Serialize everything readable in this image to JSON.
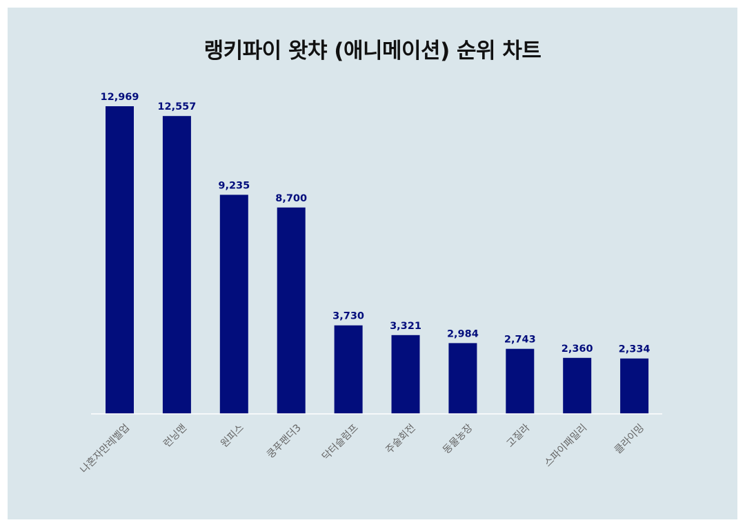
{
  "chart_data": {
    "type": "bar",
    "title": "랭키파이 왓챠 (애니메이션) 순위 차트",
    "categories": [
      "나혼자만레벨업",
      "런닝맨",
      "원피스",
      "쿵푸팬더3",
      "닥터슬럼프",
      "주술회전",
      "동물농장",
      "고질라",
      "스파이패밀리",
      "클라이밍"
    ],
    "values": [
      12969,
      12557,
      9235,
      8700,
      3730,
      3321,
      2984,
      2743,
      2360,
      2334
    ],
    "value_labels": [
      "12,969",
      "12,557",
      "9,235",
      "8,700",
      "3,730",
      "3,321",
      "2,984",
      "2,743",
      "2,360",
      "2,334"
    ],
    "xlabel": "",
    "ylabel": "",
    "ylim": [
      0,
      12969
    ],
    "grid": false,
    "bar_color": "#020d7c",
    "background_color": "#dae6eb"
  }
}
